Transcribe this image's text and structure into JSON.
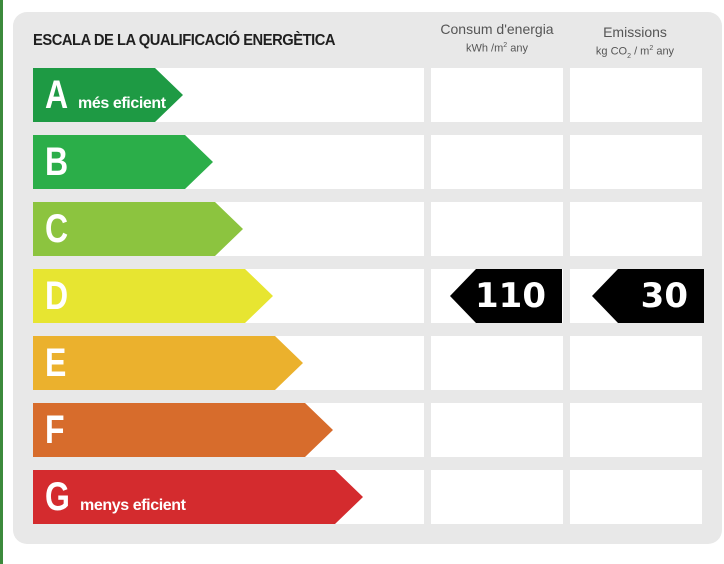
{
  "title": "ESCALA DE LA QUALIFICACIÓ ENERGÈTICA",
  "columns": {
    "consum": {
      "line1": "Consum d'energia",
      "unit_a": "kWh /m",
      "unit_sup": "2",
      "unit_b": " any"
    },
    "emissions": {
      "line1": "Emissions",
      "unit_a": "kg CO",
      "unit_sub": "2",
      "unit_c": " / m",
      "unit_sup": "2",
      "unit_b": " any"
    }
  },
  "ratings": [
    {
      "letter": "A",
      "label": "més eficient",
      "color": "#1e9a44"
    },
    {
      "letter": "B",
      "label": "",
      "color": "#2bae49"
    },
    {
      "letter": "C",
      "label": "",
      "color": "#8cc43f"
    },
    {
      "letter": "D",
      "label": "",
      "color": "#e7e531"
    },
    {
      "letter": "E",
      "label": "",
      "color": "#ebb12d"
    },
    {
      "letter": "F",
      "label": "",
      "color": "#d76c2c"
    },
    {
      "letter": "G",
      "label": "menys eficient",
      "color": "#d42b2e"
    }
  ],
  "current_rating": "D",
  "consum_value": "110",
  "emissions_value": "30"
}
